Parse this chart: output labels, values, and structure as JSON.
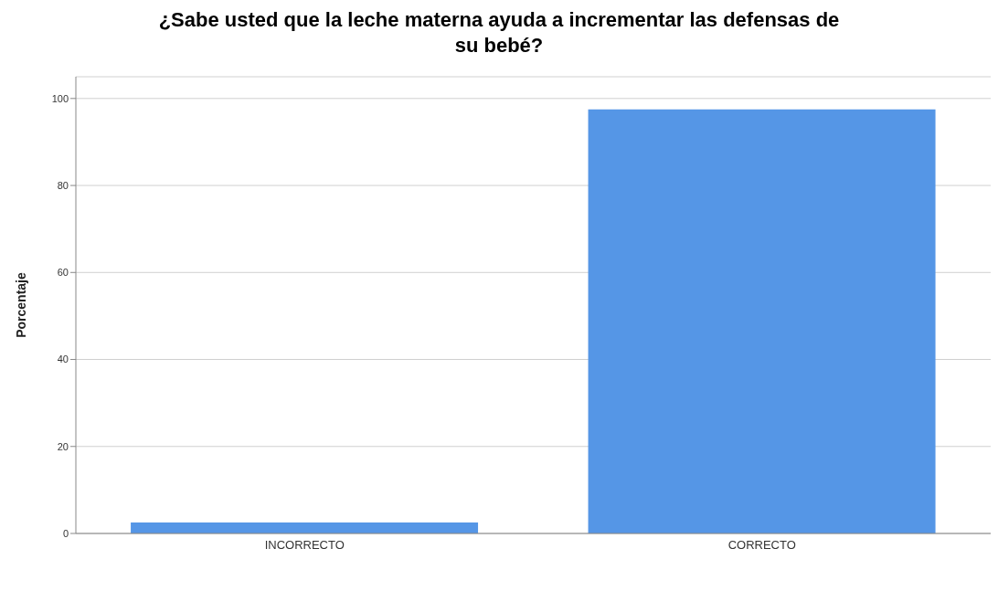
{
  "chart_data": {
    "type": "bar",
    "title": "¿Sabe usted que la leche materna ayuda a incrementar las defensas de su bebé?",
    "ylabel": "Porcentaje",
    "categories": [
      "INCORRECTO",
      "CORRECTO"
    ],
    "values": [
      2.5,
      97.5
    ],
    "color": "#5596e6",
    "ylim": [
      0,
      105
    ],
    "yticks": [
      0,
      20,
      40,
      60,
      80,
      100
    ],
    "grid": "y"
  }
}
